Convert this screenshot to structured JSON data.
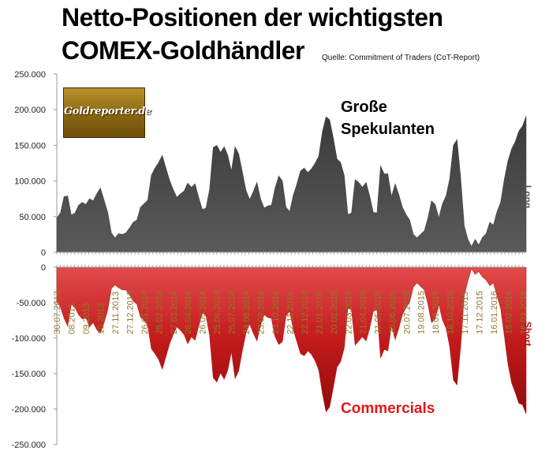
{
  "title": {
    "line1": "Netto-Positionen der wichtigsten",
    "line2": "COMEX-Goldhändler"
  },
  "source": "Quelle: Commitment of Traders (CoT-Report)",
  "logo_text": "Goldreporter.de",
  "annotation_speculators": [
    "Große",
    "Spekulanten"
  ],
  "annotation_commercials": "Commercials",
  "side_labels": {
    "long": "Long",
    "short": "Short"
  },
  "colors": {
    "speculators": "#474747",
    "commercials": "#c41818",
    "date_labels": "#8b7a2e"
  },
  "chart_data": [
    {
      "type": "area",
      "name": "Große Spekulanten",
      "ylim": [
        0,
        250000
      ],
      "yticks": [
        0,
        50000,
        100000,
        150000,
        200000,
        250000
      ],
      "ytick_labels": [
        "0",
        "50.000",
        "100.000",
        "150.000",
        "200.000",
        "250.000"
      ],
      "values": [
        48000,
        55000,
        78000,
        79000,
        52000,
        55000,
        66000,
        70000,
        67000,
        75000,
        72000,
        82000,
        90000,
        73000,
        56000,
        27000,
        20000,
        26000,
        25000,
        27000,
        34000,
        42000,
        45000,
        63000,
        68000,
        73000,
        108000,
        118000,
        126000,
        136000,
        118000,
        101000,
        88000,
        77000,
        82000,
        86000,
        97000,
        91000,
        96000,
        77000,
        60000,
        62000,
        88000,
        147000,
        150000,
        140000,
        148000,
        136000,
        114000,
        148000,
        138000,
        113000,
        87000,
        74000,
        85000,
        98000,
        75000,
        62000,
        65000,
        66000,
        90000,
        107000,
        100000,
        63000,
        57000,
        80000,
        96000,
        114000,
        118000,
        112000,
        117000,
        125000,
        135000,
        169000,
        190000,
        186000,
        161000,
        131000,
        126000,
        108000,
        53000,
        55000,
        102000,
        98000,
        91000,
        98000,
        79000,
        56000,
        55000,
        121000,
        110000,
        110000,
        78000,
        96000,
        81000,
        63000,
        53000,
        45000,
        25000,
        20000,
        25000,
        30000,
        48000,
        72000,
        67000,
        48000,
        68000,
        79000,
        103000,
        150000,
        158000,
        105000,
        37000,
        18000,
        8000,
        18000,
        10000,
        21000,
        26000,
        42000,
        38000,
        57000,
        70000,
        102000,
        128000,
        145000,
        155000,
        170000,
        177000,
        191000
      ]
    },
    {
      "type": "area",
      "name": "Commercials",
      "ylim": [
        -250000,
        0
      ],
      "yticks": [
        0,
        -50000,
        -100000,
        -150000,
        -200000,
        -250000
      ],
      "ytick_labels": [
        "0",
        "-50.000",
        "-100.000",
        "-150.000",
        "-200.000",
        "-250.000"
      ],
      "values": [
        -48000,
        -56000,
        -72000,
        -83000,
        -52000,
        -57000,
        -67000,
        -73000,
        -71000,
        -84000,
        -78000,
        -88000,
        -93000,
        -78000,
        -60000,
        -30000,
        -25000,
        -29000,
        -32000,
        -32000,
        -39000,
        -48000,
        -52000,
        -70000,
        -75000,
        -82000,
        -115000,
        -122000,
        -130000,
        -144000,
        -126000,
        -108000,
        -95000,
        -84000,
        -89000,
        -95000,
        -108000,
        -98000,
        -103000,
        -83000,
        -65000,
        -68000,
        -96000,
        -156000,
        -162000,
        -149000,
        -158000,
        -145000,
        -119000,
        -157000,
        -146000,
        -118000,
        -93000,
        -80000,
        -93000,
        -104000,
        -82000,
        -67000,
        -71000,
        -72000,
        -98000,
        -109000,
        -105000,
        -69000,
        -62000,
        -88000,
        -105000,
        -122000,
        -125000,
        -118000,
        -123000,
        -132000,
        -145000,
        -178000,
        -204000,
        -197000,
        -170000,
        -141000,
        -133000,
        -114000,
        -58000,
        -60000,
        -110000,
        -104000,
        -98000,
        -104000,
        -86000,
        -62000,
        -60000,
        -128000,
        -116000,
        -118000,
        -82000,
        -102000,
        -86000,
        -67000,
        -57000,
        -49000,
        -28000,
        -22000,
        -27000,
        -32000,
        -52000,
        -78000,
        -73000,
        -52000,
        -74000,
        -86000,
        -112000,
        -159000,
        -166000,
        -112000,
        -40000,
        -19000,
        -2000,
        -10000,
        -6000,
        -14000,
        -18000,
        -26000,
        -22000,
        -40000,
        -58000,
        -96000,
        -136000,
        -163000,
        -177000,
        -192000,
        -194000,
        -207000
      ]
    }
  ],
  "date_labels": [
    "30.07.2013",
    "08.2013",
    "09.2013",
    "10.2013",
    "27.11.2013",
    "27.12.2013",
    "26.01.2014",
    "25.02.2014",
    "27.03.2014",
    "26.04.2014",
    "26.05.2014",
    "25.06.2014",
    "25.07.2014",
    "24.08.2014",
    "23.09.2014",
    "23.10.2014",
    "22.11.2014",
    "22.12.2014",
    "21.01.2015",
    "20.02.2015",
    "22.03.2015",
    "21.04.2015",
    "21.05.2015",
    "20.06.2015",
    "20.07.2015",
    "19.08.2015",
    "18.09.2015",
    "18.10.2015",
    "17.11.2015",
    "17.12.2015",
    "16.01.2016",
    "15.02.2016",
    "16.03.2016"
  ]
}
